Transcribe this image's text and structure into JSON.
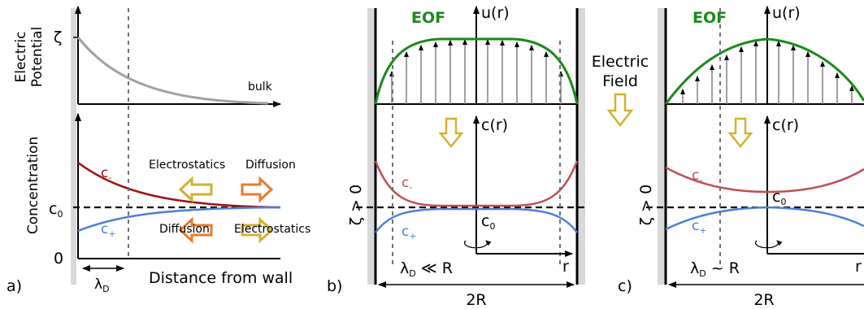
{
  "panel_a": {
    "label": "a)",
    "potential_axis": {
      "line1": "Electric",
      "line2": "Potential",
      "zeta": "ζ",
      "bulk": "bulk"
    },
    "concentration_axis": {
      "label": "Concentration",
      "c0_main": "c",
      "c0_sub": "0",
      "zero": "0"
    },
    "c_minus": {
      "main": "c",
      "sub": "-"
    },
    "c_plus": {
      "main": "c",
      "sub": "+"
    },
    "upper_left": "Electrostatics",
    "upper_right": "Diffusion",
    "lower_left": "Diffusion",
    "lower_right": "Electrostatics",
    "lambda": {
      "main": "λ",
      "sub": "D"
    },
    "x_label": "Distance from wall"
  },
  "panel_b": {
    "label": "b)",
    "eof": "EOF",
    "u_label": "u(r)",
    "c_label": "c(r)",
    "c_minus": {
      "main": "c",
      "sub": "-"
    },
    "c_plus": {
      "main": "c",
      "sub": "+"
    },
    "c0": {
      "main": "c",
      "sub": "0"
    },
    "zeta": "ζ > 0",
    "lambda": {
      "main": "λ",
      "sub": "D",
      "rel": " ≪ R"
    },
    "r": "r",
    "width": "2R"
  },
  "panel_c": {
    "label": "c)",
    "eof": "EOF",
    "u_label": "u(r)",
    "c_label": "c(r)",
    "c_minus": {
      "main": "c",
      "sub": "-"
    },
    "c_plus": {
      "main": "c",
      "sub": "+"
    },
    "c0": {
      "main": "c",
      "sub": "0"
    },
    "zeta": "ζ > 0",
    "lambda": {
      "main": "λ",
      "sub": "D",
      "rel": " ~ R"
    },
    "r": "r",
    "width": "2R"
  },
  "field": {
    "line1": "Electric",
    "line2": "Field"
  },
  "colors": {
    "potential": "#a0a0a0",
    "c_minus_a": "#a01010",
    "c_minus_bc": "#c05050",
    "c_plus": "#4a80d8",
    "eof": "#1a8a1a",
    "arrow_yellow": "#d4b030",
    "arrow_orange": "#ea7b2a",
    "wall": "#d8d8d8"
  }
}
